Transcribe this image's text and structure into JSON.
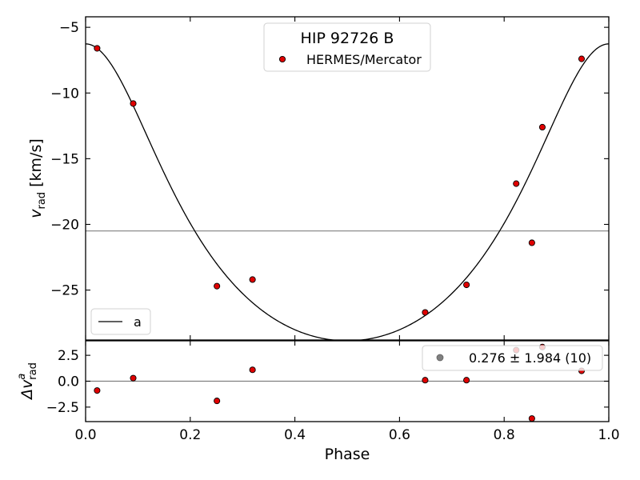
{
  "chart_data": [
    {
      "type": "scatter",
      "title": "HIP 92726 B",
      "xlabel": "Phase",
      "ylabel": {
        "base": "v",
        "sub": "rad",
        "unit": " [km/s]"
      },
      "xlim": [
        0.0,
        1.0
      ],
      "ylim": [
        -28.8,
        -4.2
      ],
      "xticks": [
        "0.0",
        "0.2",
        "0.4",
        "0.6",
        "0.8",
        "1.0"
      ],
      "yticks": [
        -5,
        -10,
        -15,
        -20,
        -25
      ],
      "ytick_labels": [
        "−5",
        "−10",
        "−15",
        "−20",
        "−25"
      ],
      "grid": false,
      "hline": -20.5,
      "series": [
        {
          "name": "HERMES/Mercator",
          "kind": "points",
          "color": "#e00000",
          "edge": "#000000",
          "points": [
            [
              0.022,
              -6.6
            ],
            [
              0.091,
              -10.8
            ],
            [
              0.251,
              -24.7
            ],
            [
              0.319,
              -24.2
            ],
            [
              0.649,
              -26.7
            ],
            [
              0.728,
              -24.6
            ],
            [
              0.823,
              -16.9
            ],
            [
              0.853,
              -21.4
            ],
            [
              0.873,
              -12.6
            ],
            [
              0.948,
              -7.4
            ]
          ]
        },
        {
          "name": "a",
          "kind": "curve",
          "color": "#000000",
          "model": {
            "gamma": -20.5,
            "K": 11.3,
            "e": 0.26,
            "omega_deg": 0,
            "T0": 0.0
          }
        }
      ],
      "legend_top": {
        "title": "HIP 92726 B",
        "entries": [
          "HERMES/Mercator"
        ],
        "placement": "top-center"
      },
      "legend_bottom": {
        "entries": [
          "a"
        ],
        "placement": "bottom-left"
      }
    },
    {
      "type": "scatter",
      "xlabel": "Phase",
      "ylabel": {
        "base": "Δv",
        "sup": "a",
        "sub": "rad"
      },
      "xlim": [
        0.0,
        1.0
      ],
      "ylim": [
        -3.9,
        3.9
      ],
      "yticks": [
        2.5,
        0.0,
        -2.5
      ],
      "ytick_labels": [
        "2.5",
        "0.0",
        "−2.5"
      ],
      "hline": 0.0,
      "series": [
        {
          "name": "0.276 ± 1.984 (10)",
          "kind": "points",
          "color": "#e00000",
          "edge": "#000000",
          "points": [
            [
              0.022,
              -0.9
            ],
            [
              0.091,
              0.3
            ],
            [
              0.251,
              -1.9
            ],
            [
              0.319,
              1.1
            ],
            [
              0.649,
              0.1
            ],
            [
              0.728,
              0.1
            ],
            [
              0.823,
              3.0
            ],
            [
              0.853,
              -3.6
            ],
            [
              0.873,
              3.3
            ],
            [
              0.948,
              1.0
            ]
          ]
        }
      ],
      "legend": {
        "entries": [
          "0.276 ± 1.984 (10)"
        ],
        "marker_color": "#808080",
        "placement": "top-right"
      }
    }
  ]
}
